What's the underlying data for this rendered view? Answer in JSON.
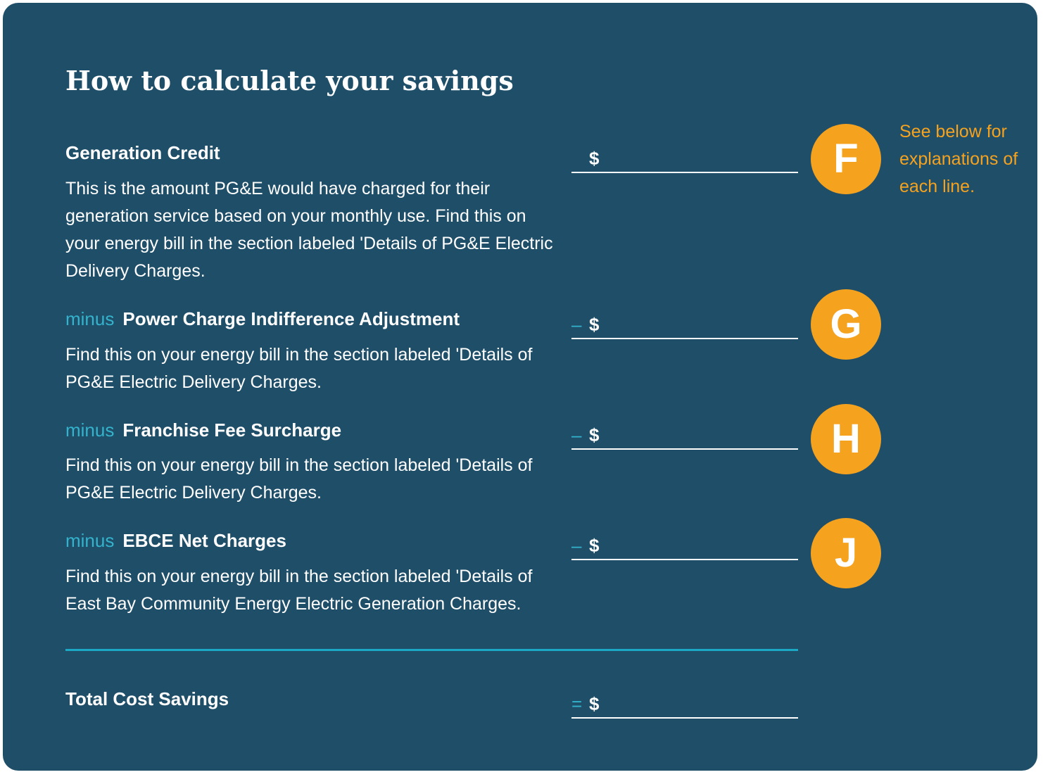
{
  "title": "How to calculate your savings",
  "note": "See below for explanations of each line.",
  "rows": [
    {
      "prefix": "",
      "label": "Generation Credit",
      "description": "This is the amount PG&E would have charged for their generation service based on your monthly use. Find this on your energy bill in the section labeled 'Details of PG&E Electric Delivery Charges.",
      "operator": "",
      "currency": "$",
      "badge": "F"
    },
    {
      "prefix": "minus",
      "label": "Power Charge Indifference Adjustment",
      "description": "Find this on your energy bill in the section labeled 'Details of PG&E Electric Delivery Charges.",
      "operator": "–",
      "currency": "$",
      "badge": "G"
    },
    {
      "prefix": "minus",
      "label": "Franchise Fee Surcharge",
      "description": "Find this on your energy bill in the section labeled 'Details of PG&E Electric Delivery Charges.",
      "operator": "–",
      "currency": "$",
      "badge": "H"
    },
    {
      "prefix": "minus",
      "label": "EBCE Net Charges",
      "description": "Find this on your energy bill in the section labeled 'Details of East Bay Community Energy Electric Generation Charges.",
      "operator": "–",
      "currency": "$",
      "badge": "J"
    }
  ],
  "total": {
    "label": "Total Cost Savings",
    "operator": "=",
    "currency": "$"
  },
  "colors": {
    "background": "#1f4e69",
    "accent": "#f5a21f",
    "operator": "#33b3cc",
    "text": "#ffffff"
  }
}
